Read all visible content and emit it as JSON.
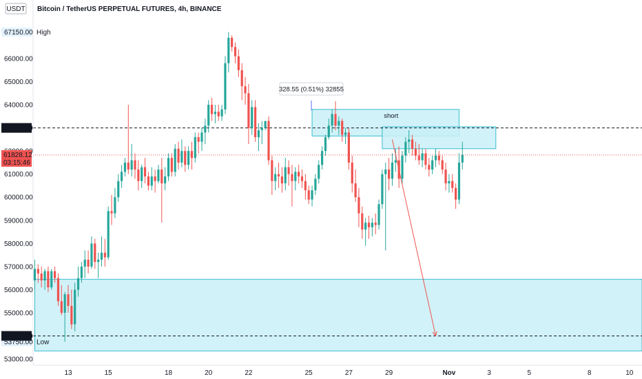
{
  "header": {
    "currency_badge": "USDT",
    "title": "Bitcoin / TetherUS PERPETUAL FUTURES, 4h, BINANCE"
  },
  "colors": {
    "up": "#26a69a",
    "down": "#ef5350",
    "zone_fill": "#c9f0f7",
    "zone_stroke": "#38bcd0",
    "price_line": "#ef5350",
    "arrow": "#ef5350"
  },
  "chart_data": {
    "type": "candlestick",
    "title": "Bitcoin / TetherUS PERPETUAL FUTURES, 4h, BINANCE",
    "xlabel": "",
    "ylabel": "",
    "ylim": [
      52800,
      67900
    ],
    "y_ticks": [
      53000,
      54000,
      55000,
      56000,
      57000,
      58000,
      59000,
      60000,
      61000,
      62000,
      63000,
      64000,
      65000,
      66000
    ],
    "y_tick_labels": [
      "53000.00",
      "54000.00",
      "55000.00",
      "56000.00",
      "57000.00",
      "58000.00",
      "59000.00",
      "60000.00",
      "61000.00",
      "62000.00",
      "63000.00",
      "64000.00",
      "65000.00",
      "66000.00"
    ],
    "x_ticks": [
      {
        "label": "13",
        "index": 10
      },
      {
        "label": "15",
        "index": 22
      },
      {
        "label": "18",
        "index": 40
      },
      {
        "label": "20",
        "index": 52
      },
      {
        "label": "22",
        "index": 64
      },
      {
        "label": "25",
        "index": 82
      },
      {
        "label": "27",
        "index": 94
      },
      {
        "label": "29",
        "index": 106
      },
      {
        "label": "Nov",
        "index": 124
      },
      {
        "label": "3",
        "index": 136
      },
      {
        "label": "5",
        "index": 148
      },
      {
        "label": "8",
        "index": 166
      },
      {
        "label": "10",
        "index": 178
      }
    ],
    "current_price": {
      "price_label": "61828.12",
      "countdown": "03:15:46",
      "value": 61828.12
    },
    "high": {
      "label": "High",
      "value_label": "67150.00",
      "value": 67150
    },
    "low": {
      "label": "Low",
      "value_label": "53750.00",
      "value": 53750
    },
    "horizontal_lines": [
      {
        "value": 63000,
        "label": "63000.00"
      },
      {
        "value": 54000,
        "label": "54000.00"
      }
    ],
    "zones": [
      {
        "name": "short",
        "from_index": 83,
        "to_index": 127,
        "low": 62650,
        "high": 63800
      },
      {
        "name": "",
        "from_index": 104,
        "to_index": 138,
        "low": 62100,
        "high": 63050
      },
      {
        "name": "",
        "from_index": 0,
        "to_index": 186,
        "low": 53350,
        "high": 56450
      }
    ],
    "measure_label": "328.55 (0.51%) 32855",
    "arrow": {
      "from_index": 107,
      "from_value": 62500,
      "to_index": 120,
      "to_value": 54000
    },
    "candles": [
      [
        56400,
        57300,
        56000,
        56900
      ],
      [
        56900,
        57100,
        56300,
        56700
      ],
      [
        56700,
        57000,
        56100,
        56400
      ],
      [
        56400,
        56900,
        56000,
        56800
      ],
      [
        56800,
        57000,
        55900,
        56100
      ],
      [
        56100,
        56900,
        56000,
        56800
      ],
      [
        56800,
        57000,
        56300,
        56500
      ],
      [
        56500,
        56700,
        55300,
        55500
      ],
      [
        55500,
        56200,
        54900,
        55000
      ],
      [
        55000,
        55900,
        53750,
        55800
      ],
      [
        55800,
        56200,
        55000,
        55300
      ],
      [
        55300,
        56000,
        54300,
        54500
      ],
      [
        54500,
        56300,
        54200,
        56000
      ],
      [
        56000,
        57000,
        55700,
        56500
      ],
      [
        56500,
        57200,
        56300,
        57000
      ],
      [
        57000,
        57700,
        56500,
        57300
      ],
      [
        57300,
        57700,
        56700,
        57000
      ],
      [
        57000,
        58300,
        56900,
        58000
      ],
      [
        58000,
        58200,
        56900,
        57200
      ],
      [
        57200,
        57600,
        56500,
        57300
      ],
      [
        57300,
        58300,
        57000,
        57600
      ],
      [
        57600,
        58200,
        57000,
        57400
      ],
      [
        57400,
        59600,
        57300,
        59400
      ],
      [
        59400,
        60100,
        58800,
        59300
      ],
      [
        59300,
        60400,
        59100,
        60000
      ],
      [
        60000,
        61000,
        59800,
        60700
      ],
      [
        60700,
        61400,
        60400,
        61100
      ],
      [
        61100,
        61700,
        60900,
        61500
      ],
      [
        61500,
        64000,
        61000,
        61200
      ],
      [
        61200,
        62300,
        60900,
        61600
      ],
      [
        61600,
        61900,
        60800,
        61200
      ],
      [
        61200,
        61600,
        60300,
        60700
      ],
      [
        60700,
        61400,
        60400,
        61300
      ],
      [
        61300,
        61700,
        60600,
        60900
      ],
      [
        60900,
        61100,
        60300,
        60500
      ],
      [
        60500,
        61300,
        60300,
        60900
      ],
      [
        60900,
        61200,
        60200,
        60700
      ],
      [
        60700,
        61400,
        60600,
        61200
      ],
      [
        61200,
        61700,
        58900,
        60600
      ],
      [
        60600,
        61300,
        60300,
        60900
      ],
      [
        60900,
        61900,
        60700,
        61700
      ],
      [
        61700,
        61900,
        60900,
        61100
      ],
      [
        61100,
        62300,
        60900,
        62100
      ],
      [
        62100,
        62400,
        61200,
        61500
      ],
      [
        61500,
        62500,
        61300,
        62000
      ],
      [
        62000,
        62200,
        61100,
        61400
      ],
      [
        61400,
        62200,
        61200,
        62000
      ],
      [
        62000,
        62400,
        61200,
        61700
      ],
      [
        61700,
        62800,
        61500,
        62600
      ],
      [
        62600,
        62800,
        61900,
        62400
      ],
      [
        62400,
        63000,
        62000,
        62800
      ],
      [
        62800,
        63400,
        62300,
        63100
      ],
      [
        63100,
        64200,
        62800,
        64000
      ],
      [
        64000,
        64300,
        63300,
        63600
      ],
      [
        63600,
        64000,
        63200,
        63700
      ],
      [
        63700,
        64000,
        63300,
        63500
      ],
      [
        63500,
        64000,
        63300,
        63800
      ],
      [
        63800,
        66100,
        63600,
        65800
      ],
      [
        65800,
        67150,
        65400,
        66900
      ],
      [
        66900,
        67000,
        66300,
        66500
      ],
      [
        66500,
        66700,
        65800,
        66100
      ],
      [
        66100,
        66400,
        65200,
        65500
      ],
      [
        65500,
        65800,
        64200,
        64800
      ],
      [
        64800,
        65200,
        64000,
        64500
      ],
      [
        64500,
        64900,
        62300,
        63000
      ],
      [
        63000,
        64200,
        62700,
        63900
      ],
      [
        63900,
        64200,
        62400,
        62600
      ],
      [
        62600,
        63200,
        62000,
        62900
      ],
      [
        62900,
        63300,
        62300,
        63000
      ],
      [
        63000,
        63300,
        62900,
        63300
      ],
      [
        63300,
        63500,
        61400,
        61600
      ],
      [
        61600,
        61800,
        60100,
        60700
      ],
      [
        60700,
        61300,
        60300,
        61000
      ],
      [
        61000,
        61500,
        60400,
        60900
      ],
      [
        60900,
        61300,
        60200,
        60600
      ],
      [
        60600,
        61700,
        60300,
        61300
      ],
      [
        61300,
        61600,
        60500,
        61000
      ],
      [
        61000,
        61400,
        59600,
        60700
      ],
      [
        60700,
        61300,
        60300,
        61100
      ],
      [
        61100,
        61400,
        60600,
        60900
      ],
      [
        60900,
        61200,
        60400,
        60700
      ],
      [
        60700,
        61000,
        59900,
        60300
      ],
      [
        60300,
        60500,
        59700,
        59900
      ],
      [
        59900,
        60500,
        59600,
        60300
      ],
      [
        60300,
        61000,
        60100,
        60800
      ],
      [
        60800,
        61600,
        60600,
        61400
      ],
      [
        61400,
        62200,
        61200,
        62000
      ],
      [
        62000,
        62700,
        61800,
        62600
      ],
      [
        62600,
        63400,
        62500,
        63100
      ],
      [
        63100,
        63800,
        62800,
        63600
      ],
      [
        63600,
        64150,
        62900,
        63100
      ],
      [
        63100,
        63500,
        62700,
        63300
      ],
      [
        63300,
        63400,
        62400,
        62700
      ],
      [
        62700,
        63000,
        62300,
        62800
      ],
      [
        62800,
        63000,
        61200,
        61500
      ],
      [
        61500,
        61800,
        60200,
        60600
      ],
      [
        60600,
        61200,
        59800,
        60000
      ],
      [
        60000,
        60400,
        58700,
        59300
      ],
      [
        59300,
        59600,
        58200,
        58600
      ],
      [
        58600,
        59100,
        57900,
        58900
      ],
      [
        58900,
        59200,
        58200,
        58700
      ],
      [
        58700,
        59100,
        58300,
        58900
      ],
      [
        58900,
        59300,
        58400,
        58800
      ],
      [
        58800,
        59900,
        58600,
        59700
      ],
      [
        59700,
        61200,
        59500,
        61000
      ],
      [
        61000,
        61500,
        57700,
        61200
      ],
      [
        61200,
        61700,
        60300,
        60800
      ],
      [
        60800,
        61900,
        60500,
        61500
      ],
      [
        61500,
        62100,
        61100,
        61600
      ],
      [
        61600,
        62200,
        60400,
        60800
      ],
      [
        60800,
        62000,
        60600,
        61800
      ],
      [
        61800,
        62600,
        61500,
        62400
      ],
      [
        62400,
        62900,
        61900,
        62500
      ],
      [
        62500,
        62700,
        61800,
        62100
      ],
      [
        62100,
        62400,
        61600,
        61800
      ],
      [
        61800,
        62300,
        61400,
        61600
      ],
      [
        61600,
        62100,
        61300,
        61900
      ],
      [
        61900,
        62100,
        61200,
        61400
      ],
      [
        61400,
        61700,
        60900,
        61200
      ],
      [
        61200,
        61800,
        61000,
        61600
      ],
      [
        61600,
        62100,
        61300,
        61800
      ],
      [
        61800,
        62000,
        61400,
        61600
      ],
      [
        61600,
        61800,
        61000,
        61200
      ],
      [
        61200,
        61500,
        60300,
        60600
      ],
      [
        60600,
        61000,
        60200,
        60700
      ],
      [
        60700,
        61000,
        60200,
        60400
      ],
      [
        60400,
        60600,
        59500,
        59900
      ],
      [
        59900,
        61900,
        59700,
        61500
      ],
      [
        61500,
        62400,
        61200,
        61828
      ]
    ]
  }
}
